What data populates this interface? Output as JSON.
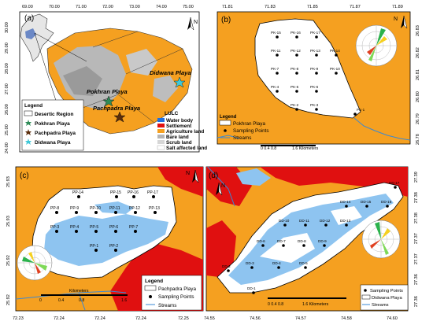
{
  "panel_a": {
    "label": "(a)",
    "lon_ticks": [
      "69.00",
      "70.00",
      "71.00",
      "72.00",
      "73.00",
      "74.00",
      "75.00"
    ],
    "lat_ticks": [
      "30.00",
      "29.00",
      "28.00",
      "27.00",
      "26.00",
      "25.00",
      "24.00"
    ],
    "playa_labels": {
      "pokhran": "Pokhran Playa",
      "pachpadra": "Pachpadra Playa",
      "didwana": "Didwana Playa"
    },
    "legend": {
      "title": "Legend",
      "items": [
        {
          "label": "Desertic Region",
          "color": "#ffffff"
        },
        {
          "label": "Pokhran Playa",
          "color": "#2e8b57"
        },
        {
          "label": "Pachpadra Playa",
          "color": "#5a2d0c"
        },
        {
          "label": "Didwana Playa",
          "color": "#40c8d8"
        }
      ]
    },
    "lulc": {
      "title": "LULC",
      "items": [
        {
          "label": "Water body",
          "color": "#1f6fe0"
        },
        {
          "label": "Settlement",
          "color": "#e01010"
        },
        {
          "label": "Agriculture land",
          "color": "#f5a020"
        },
        {
          "label": "Bare land",
          "color": "#b5b5b5"
        },
        {
          "label": "Scrub land",
          "color": "#d6d6d6"
        },
        {
          "label": "Salt affected land",
          "color": "#ffffff"
        }
      ]
    }
  },
  "panel_b": {
    "label": "(b)",
    "lon_ticks": [
      "71.81",
      "71.83",
      "71.85",
      "71.87",
      "71.89"
    ],
    "lat_ticks": [
      "26.83",
      "26.82",
      "26.81",
      "26.80",
      "26.79",
      "26.78"
    ],
    "points": [
      {
        "id": "PK-15"
      },
      {
        "id": "PK-16"
      },
      {
        "id": "PK-17"
      },
      {
        "id": "PK-14"
      },
      {
        "id": "PK-11"
      },
      {
        "id": "PK-12"
      },
      {
        "id": "PK-13"
      },
      {
        "id": "PK-7"
      },
      {
        "id": "PK-8"
      },
      {
        "id": "PK-9"
      },
      {
        "id": "PK-10"
      },
      {
        "id": "PK-4"
      },
      {
        "id": "PK-5"
      },
      {
        "id": "PK-6"
      },
      {
        "id": "PK-2"
      },
      {
        "id": "PK-3"
      },
      {
        "id": "PK-1"
      }
    ],
    "legend": {
      "title": "Legend",
      "playa": "Pokhran Playa",
      "points": "Sampling Points",
      "streams": "Streams"
    },
    "scale": {
      "ticks": "0  0.4 0.8",
      "units": "1.6 Kilometers"
    }
  },
  "panel_c": {
    "label": "(c)",
    "lon_ticks": [
      "72.23",
      "72.24",
      "72.24",
      "72.24",
      "72.25"
    ],
    "lat_ticks": [
      "25.93",
      "25.93",
      "25.92",
      "25.92"
    ],
    "points": [
      {
        "id": "PP-14"
      },
      {
        "id": "PP-15"
      },
      {
        "id": "PP-16"
      },
      {
        "id": "PP-17"
      },
      {
        "id": "PP-8"
      },
      {
        "id": "PP-9"
      },
      {
        "id": "PP-10"
      },
      {
        "id": "PP-11"
      },
      {
        "id": "PP-12"
      },
      {
        "id": "PP-13"
      },
      {
        "id": "PP-3"
      },
      {
        "id": "PP-4"
      },
      {
        "id": "PP-5"
      },
      {
        "id": "PP-6"
      },
      {
        "id": "PP-7"
      },
      {
        "id": "PP-1"
      },
      {
        "id": "PP-2"
      }
    ],
    "legend": {
      "title": "Legend",
      "playa": "Pachpadra Playa",
      "points": "Sampling Points",
      "streams": "Streams"
    },
    "scale": {
      "unit_label": "Kilometers",
      "ticks": [
        "0",
        "0.4",
        "0.8",
        "1.6"
      ]
    }
  },
  "panel_d": {
    "label": "(d)",
    "lon_ticks": [
      "74.55",
      "74.56",
      "74.57",
      "74.58",
      "74.60"
    ],
    "lat_ticks": [
      "27.39",
      "27.38",
      "27.38",
      "27.37",
      "27.37",
      "27.36",
      "27.36"
    ],
    "points": [
      {
        "id": "DD-17"
      },
      {
        "id": "DD-14"
      },
      {
        "id": "DD-15"
      },
      {
        "id": "DD-16"
      },
      {
        "id": "DD-10"
      },
      {
        "id": "DD-11"
      },
      {
        "id": "DD-12"
      },
      {
        "id": "DD-13"
      },
      {
        "id": "DD-6"
      },
      {
        "id": "DD-7"
      },
      {
        "id": "DD-8"
      },
      {
        "id": "DD-9"
      },
      {
        "id": "DD-3"
      },
      {
        "id": "DD-4"
      },
      {
        "id": "DD-5"
      },
      {
        "id": "DD-2"
      },
      {
        "id": "DD-1"
      }
    ],
    "legend": {
      "playa": "Didwana Playa",
      "points": "Sampling Points",
      "streams": "Streams"
    },
    "scale": {
      "ticks": "0  0.4  0.8",
      "units": "1.6 Kilometers"
    }
  },
  "north_label": "N",
  "colors": {
    "agri": "#f5a020",
    "water": "#8ec4f0",
    "settlement": "#e01010",
    "salt": "#ffffff",
    "scrub": "#d9d9d9",
    "bare": "#9a9a9a"
  }
}
